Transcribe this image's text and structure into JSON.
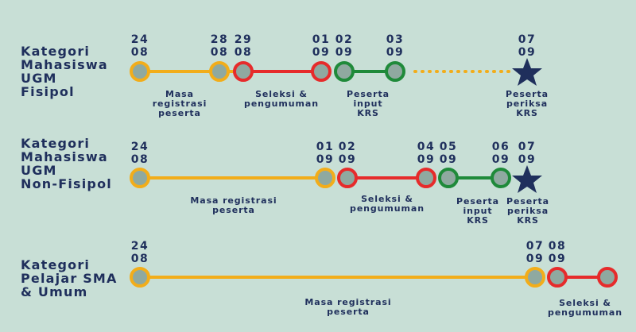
{
  "colors": {
    "background": "#c8dfd6",
    "text": "#1f2f5c",
    "yellow": "#f2ad1a",
    "red": "#e62b2b",
    "green": "#1f8a3a",
    "node_fill": "#8fa9a0",
    "star": "#1f2f5c"
  },
  "rows": [
    {
      "category": "Kategori\nMahasiswa\nUGM\nFisipol",
      "dates": [
        "24\n08",
        "28\n08",
        "29\n08",
        "01\n09",
        "02\n09",
        "03\n09",
        "07\n09"
      ],
      "labels": [
        "Masa\nregistrasi\npeserta",
        "Seleksi &\npengumuman",
        "Peserta\ninput\nKRS",
        "Peserta\nperiksa\nKRS"
      ]
    },
    {
      "category": "Kategori\nMahasiswa\nUGM\nNon-Fisipol",
      "dates": [
        "24\n08",
        "01\n09",
        "02\n09",
        "04\n09",
        "05\n09",
        "06\n09",
        "07\n09"
      ],
      "labels": [
        "Masa registrasi peserta",
        "Seleksi &\npengumuman",
        "Peserta\ninput\nKRS",
        "Peserta\nperiksa\nKRS"
      ]
    },
    {
      "category": "Kategori\nPelajar SMA\n& Umum",
      "dates": [
        "24\n08",
        "07\n09",
        "08\n09"
      ],
      "labels": [
        "Masa registrasi peserta",
        "Seleksi &\npengumuman"
      ]
    }
  ]
}
